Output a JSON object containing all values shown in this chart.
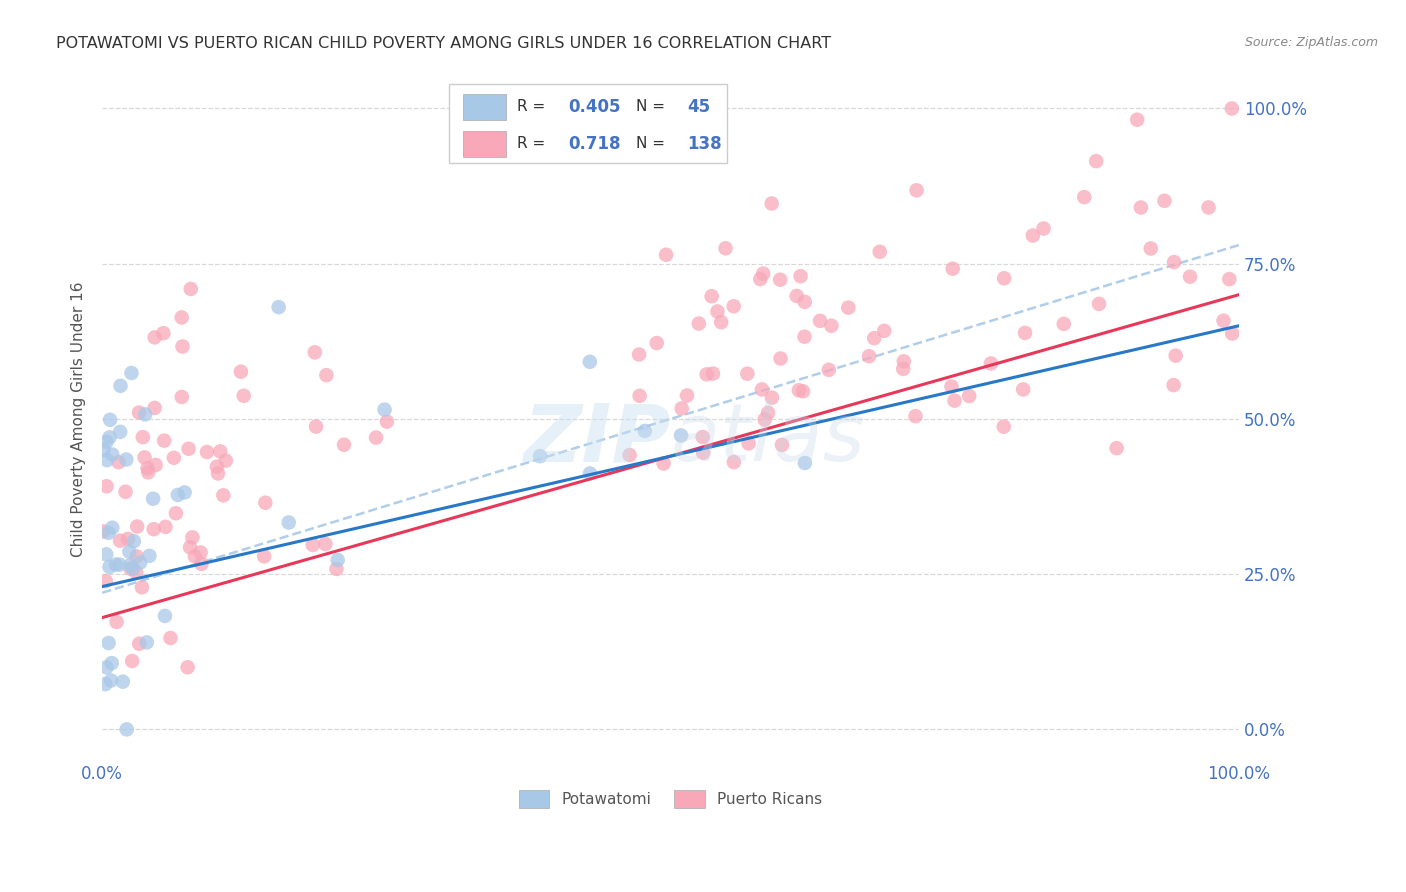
{
  "title": "POTAWATOMI VS PUERTO RICAN CHILD POVERTY AMONG GIRLS UNDER 16 CORRELATION CHART",
  "source": "Source: ZipAtlas.com",
  "ylabel": "Child Poverty Among Girls Under 16",
  "watermark": "ZIPatlas",
  "R_blue": 0.405,
  "N_blue": 45,
  "R_pink": 0.718,
  "N_pink": 138,
  "xlim": [
    0.0,
    1.0
  ],
  "ylim": [
    -0.05,
    1.05
  ],
  "ytick_positions": [
    0.0,
    0.25,
    0.5,
    0.75,
    1.0
  ],
  "ytick_labels": [
    "0.0%",
    "25.0%",
    "50.0%",
    "75.0%",
    "100.0%"
  ],
  "blue_color": "#a8c8e8",
  "pink_color": "#f8a8b8",
  "blue_line_color": "#2878c8",
  "pink_line_color": "#e8385a",
  "dashed_line_color": "#a8c8e8",
  "legend_label_blue": "Potawatomi",
  "legend_label_pink": "Puerto Ricans",
  "title_color": "#333333",
  "axis_label_color": "#555555",
  "tick_label_color": "#4472c4",
  "source_color": "#888888",
  "background_color": "#ffffff",
  "grid_color": "#d8d8d8",
  "blue_line_start": 0.23,
  "blue_line_end": 0.65,
  "pink_line_start": 0.18,
  "pink_line_end": 0.7,
  "dash_line_start": 0.22,
  "dash_line_end": 0.78
}
